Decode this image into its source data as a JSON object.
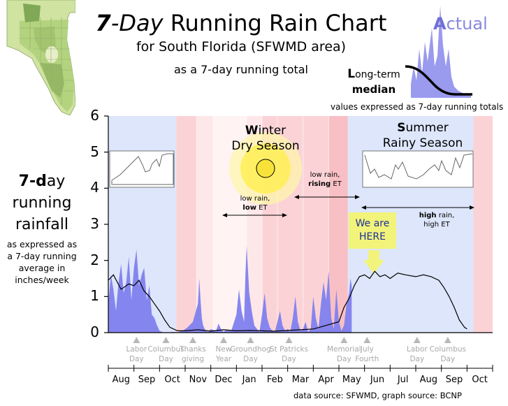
{
  "title": {
    "bold": "7",
    "italic": "-Day",
    "rest": " Running Rain Chart",
    "subtitle1": "for South Florida (SFWMD area)",
    "subtitle2": "as a 7-day running total"
  },
  "legend": {
    "actual_first": "A",
    "actual_rest": "ctual",
    "median_first": "L",
    "median_line1": "ong-term",
    "median_line2": "median",
    "note": "values expressed as 7-day running totals"
  },
  "y_label": {
    "l1a": "7-d",
    "l1b": "ay",
    "l2": "running",
    "l3": "rainfall",
    "sub1": "as expressed as",
    "sub2": "a 7-day running",
    "sub3": "average in",
    "sub4": "inches/week"
  },
  "seasons": {
    "winter_first": "W",
    "winter_rest": "inter",
    "winter_line2": "Dry Season",
    "summer_first": "S",
    "summer_rest": "ummer",
    "summer_line2": "Rainy  Season"
  },
  "et_notes": {
    "low_l1": "low rain,",
    "low_l2a": "low",
    "low_l2b": " ET",
    "rising_l1": "low rain,",
    "rising_l2a": "rising",
    "rising_l2b": " ET",
    "high_l1a": "high",
    "high_l1b": " rain,",
    "high_l2": "high ET"
  },
  "here": {
    "line1": "We are",
    "line2": "HERE"
  },
  "source": "data source: SFWMD, graph source: BCNP",
  "colors": {
    "wet_season": "#dde6fb",
    "dry_outer": "#fbd3d6",
    "dry_mid": "#fde7e9",
    "dry_center": "#fff3f3",
    "dry_late": "#f8c0c4",
    "actual_fill": "#8080ee",
    "median_line": "#000000",
    "here_box": "#f2f37a"
  },
  "icons": [
    "florida-map-icon",
    "sun-icon",
    "down-arrow-icon"
  ],
  "chart_data": {
    "type": "area",
    "ylim": [
      0,
      6
    ],
    "yticks": [
      "0",
      "1",
      "2",
      "3",
      "4",
      "5",
      "6"
    ],
    "xlim_months": [
      0,
      15
    ],
    "months": [
      "Aug",
      "Sep",
      "Oct",
      "Nov",
      "Dec",
      "Jan",
      "Feb",
      "Mar",
      "Apr",
      "May",
      "Jun",
      "Jul",
      "Aug",
      "Sep",
      "Oct"
    ],
    "holidays": [
      {
        "l1": "Labor",
        "l2": "Day",
        "t": 1.1
      },
      {
        "l1": "Columbus",
        "l2": "Day",
        "t": 2.25
      },
      {
        "l1": "Thanks",
        "l2": "giving",
        "t": 3.3
      },
      {
        "l1": "New",
        "l2": "Year",
        "t": 4.5
      },
      {
        "l1": "Groundhog",
        "l2": "Day",
        "t": 5.55
      },
      {
        "l1": "St Patricks",
        "l2": "Day",
        "t": 7.05
      },
      {
        "l1": "Memorial",
        "l2": "Day",
        "t": 9.2
      },
      {
        "l1": "July",
        "l2": "Fourth",
        "t": 10.1
      },
      {
        "l1": "Labor",
        "l2": "Day",
        "t": 12.05
      },
      {
        "l1": "Columbus",
        "l2": "Day",
        "t": 13.25
      }
    ],
    "series": [
      {
        "name": "Actual",
        "x": [
          0,
          0.1,
          0.2,
          0.3,
          0.4,
          0.5,
          0.6,
          0.7,
          0.8,
          0.9,
          1.0,
          1.1,
          1.2,
          1.3,
          1.4,
          1.5,
          1.6,
          1.7,
          1.8,
          1.9,
          2.0,
          2.1,
          2.2,
          2.3,
          2.5,
          2.7,
          2.9,
          3.1,
          3.3,
          3.5,
          3.55,
          3.6,
          3.65,
          3.7,
          3.8,
          3.9,
          4.0,
          4.2,
          4.3,
          4.4,
          4.5,
          4.6,
          4.8,
          5.0,
          5.1,
          5.2,
          5.3,
          5.35,
          5.4,
          5.5,
          5.6,
          5.7,
          5.8,
          5.9,
          6.0,
          6.1,
          6.2,
          6.3,
          6.4,
          6.5,
          6.6,
          6.7,
          6.8,
          6.9,
          7.0,
          7.1,
          7.2,
          7.3,
          7.4,
          7.5,
          7.6,
          7.7,
          7.8,
          7.9,
          8.0,
          8.1,
          8.2,
          8.3,
          8.4,
          8.5,
          8.6,
          8.7,
          8.8,
          8.9,
          9.0,
          9.1,
          9.2,
          9.3,
          9.4,
          9.45,
          9.5
        ],
        "y": [
          0.8,
          1.6,
          1.2,
          0.6,
          1.4,
          1.9,
          1.1,
          1.4,
          2.1,
          0.9,
          1.8,
          2.3,
          1.3,
          1.6,
          1.8,
          0.9,
          1.3,
          0.5,
          0.4,
          0.2,
          0.05,
          0.02,
          0,
          0,
          0.02,
          0.01,
          0.05,
          0.15,
          0.3,
          0.8,
          1.5,
          0.9,
          0.4,
          0.2,
          0.05,
          0.02,
          0.1,
          0.04,
          0.25,
          0.1,
          0.02,
          0.08,
          0.05,
          0.5,
          1.2,
          0.6,
          0.3,
          1.6,
          2.4,
          1.1,
          0.6,
          0.2,
          0.1,
          0.02,
          0.5,
          1.1,
          0.4,
          0.15,
          0.05,
          0.02,
          0.3,
          0.6,
          0.2,
          0.05,
          0.1,
          0.02,
          0.4,
          1.0,
          0.3,
          0.05,
          0.1,
          0.3,
          0.02,
          0.1,
          1.0,
          0.4,
          0.1,
          0.8,
          1.4,
          0.9,
          1.7,
          0.4,
          0.1,
          1.2,
          0.3,
          0.05,
          0.2,
          0.8,
          1.1,
          1.5,
          1.3
        ]
      },
      {
        "name": "Long-term median",
        "x": [
          0,
          0.2,
          0.5,
          0.8,
          1.0,
          1.2,
          1.4,
          1.6,
          1.8,
          2.0,
          2.2,
          2.4,
          2.7,
          3.0,
          3.5,
          4.0,
          4.5,
          5.0,
          5.5,
          6.0,
          6.5,
          7.0,
          7.5,
          8.0,
          8.5,
          9.0,
          9.2,
          9.4,
          9.6,
          9.8,
          10.0,
          10.2,
          10.4,
          10.6,
          10.8,
          11.0,
          11.3,
          11.6,
          12.0,
          12.3,
          12.6,
          12.9,
          13.1,
          13.3,
          13.5,
          13.7,
          13.9,
          14.0
        ],
        "y": [
          1.45,
          1.6,
          1.2,
          1.35,
          1.3,
          1.45,
          1.15,
          1.0,
          0.8,
          0.6,
          0.35,
          0.15,
          0.05,
          0.05,
          0.08,
          0.04,
          0.08,
          0.05,
          0.06,
          0.05,
          0.04,
          0.06,
          0.08,
          0.1,
          0.2,
          0.3,
          0.7,
          0.95,
          1.3,
          1.55,
          1.6,
          1.5,
          1.7,
          1.55,
          1.6,
          1.5,
          1.65,
          1.6,
          1.55,
          1.6,
          1.55,
          1.45,
          1.25,
          1.0,
          0.7,
          0.35,
          0.15,
          0.1
        ]
      }
    ]
  }
}
